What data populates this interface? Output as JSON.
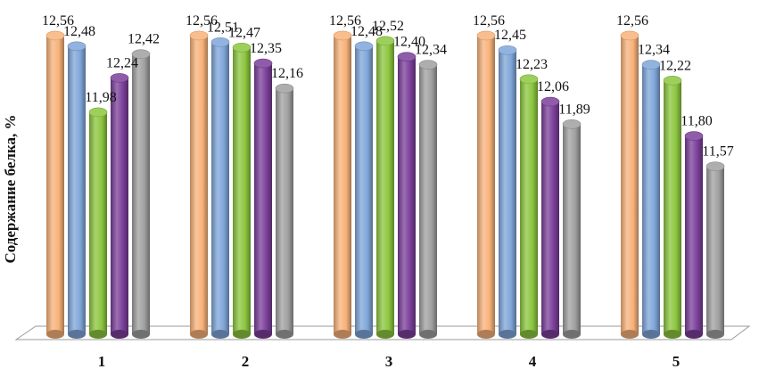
{
  "chart_data": {
    "type": "bar",
    "style": "3d-cylinder",
    "ylabel": "Содержание белка, %",
    "xlabel": "",
    "categories": [
      "1",
      "2",
      "3",
      "4",
      "5"
    ],
    "ylim": [
      10.3,
      12.6
    ],
    "grid": false,
    "legend": "none",
    "colors": [
      "#f8b27a",
      "#7fa6d9",
      "#8cc63f",
      "#7b3f9a",
      "#a0a0a0"
    ],
    "series": [
      {
        "values": [
          12.56,
          12.56,
          12.56,
          12.56,
          12.56
        ]
      },
      {
        "values": [
          12.48,
          12.51,
          12.48,
          12.45,
          12.34
        ]
      },
      {
        "values": [
          11.98,
          12.47,
          12.52,
          12.23,
          12.22
        ]
      },
      {
        "values": [
          12.24,
          12.35,
          12.4,
          12.06,
          11.8
        ]
      },
      {
        "values": [
          12.42,
          12.16,
          12.34,
          11.89,
          11.57
        ]
      }
    ],
    "value_labels": [
      [
        "12,56",
        "12,48",
        "11,98",
        "12,24",
        "12,42"
      ],
      [
        "12,56",
        "12,51",
        "12,47",
        "12,35",
        "12,16"
      ],
      [
        "12,56",
        "12,48",
        "12,52",
        "12,40",
        "12,34"
      ],
      [
        "12,56",
        "12,45",
        "12,23",
        "12,06",
        "11,89"
      ],
      [
        "12,56",
        "12,34",
        "12,22",
        "11,80",
        "11,57"
      ]
    ]
  }
}
